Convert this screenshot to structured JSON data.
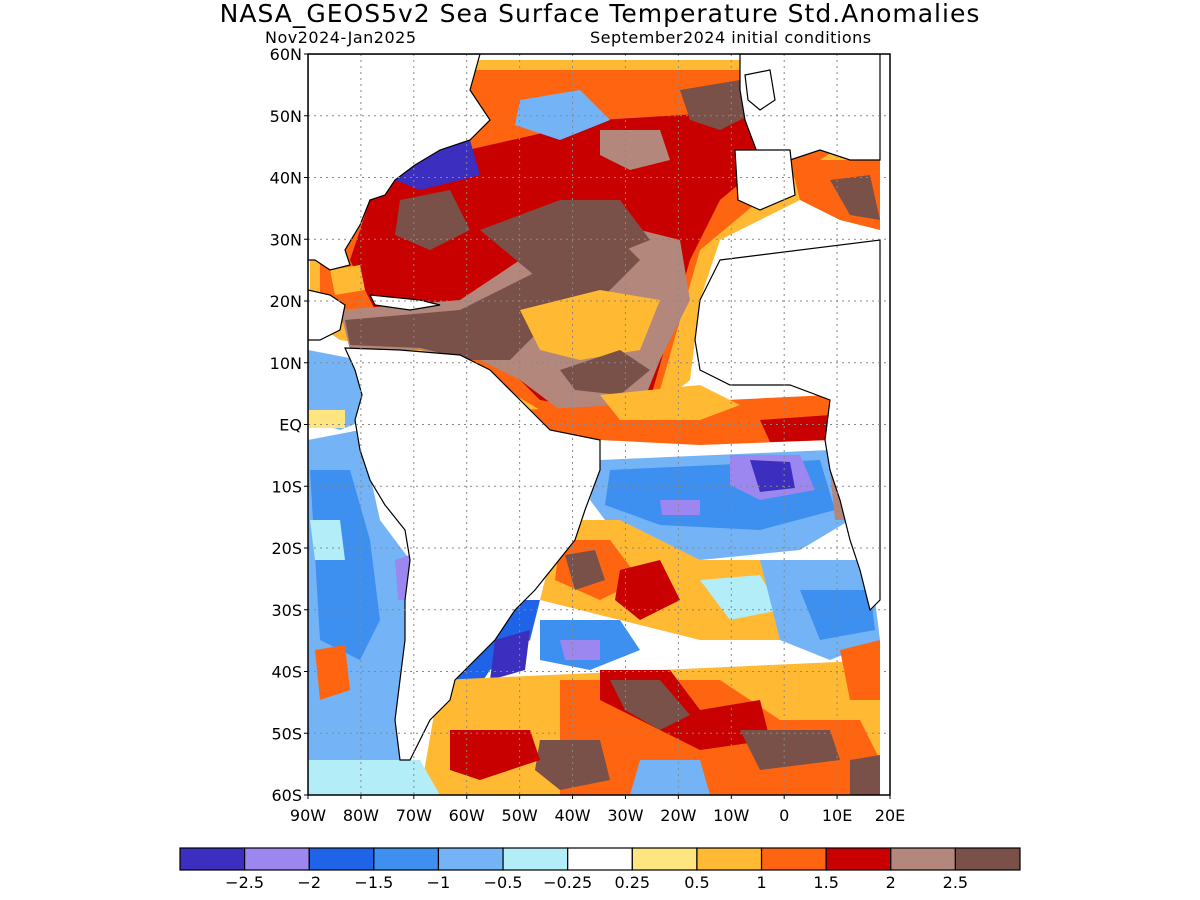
{
  "title": "NASA_GEOS5v2 Sea Surface Temperature Std.Anomalies",
  "subtitle_left": "Nov2024-Jan2025",
  "subtitle_right": "September2024 initial conditions",
  "map": {
    "lat_labels": [
      "60N",
      "50N",
      "40N",
      "30N",
      "20N",
      "10N",
      "EQ",
      "10S",
      "20S",
      "30S",
      "40S",
      "50S",
      "60S"
    ],
    "lon_labels": [
      "90W",
      "80W",
      "70W",
      "60W",
      "50W",
      "40W",
      "30W",
      "20W",
      "10W",
      "0",
      "10E",
      "20E"
    ],
    "lat_range": [
      -60,
      60
    ],
    "lon_range": [
      -90,
      20
    ],
    "grid": "dotted"
  },
  "colorbar": {
    "colors": [
      "#3c2fbf",
      "#9c87f0",
      "#1f64e8",
      "#3d8ff0",
      "#74b4f6",
      "#b2edf8",
      "#ffffff",
      "#ffe57f",
      "#ffb933",
      "#ff6410",
      "#c80000",
      "#b3877c",
      "#7a5148"
    ],
    "labels": [
      "−2.5",
      "−2",
      "−1.5",
      "−1",
      "−0.5",
      "−0.25",
      "0.25",
      "0.5",
      "1",
      "1.5",
      "2",
      "2.5"
    ]
  },
  "colors": {
    "land": "#ffffff",
    "ocean_neutral": "#ffffff",
    "warm_strong": "#7a5148",
    "warm_moderate": "#c80000",
    "cool": "#3d8ff0"
  }
}
